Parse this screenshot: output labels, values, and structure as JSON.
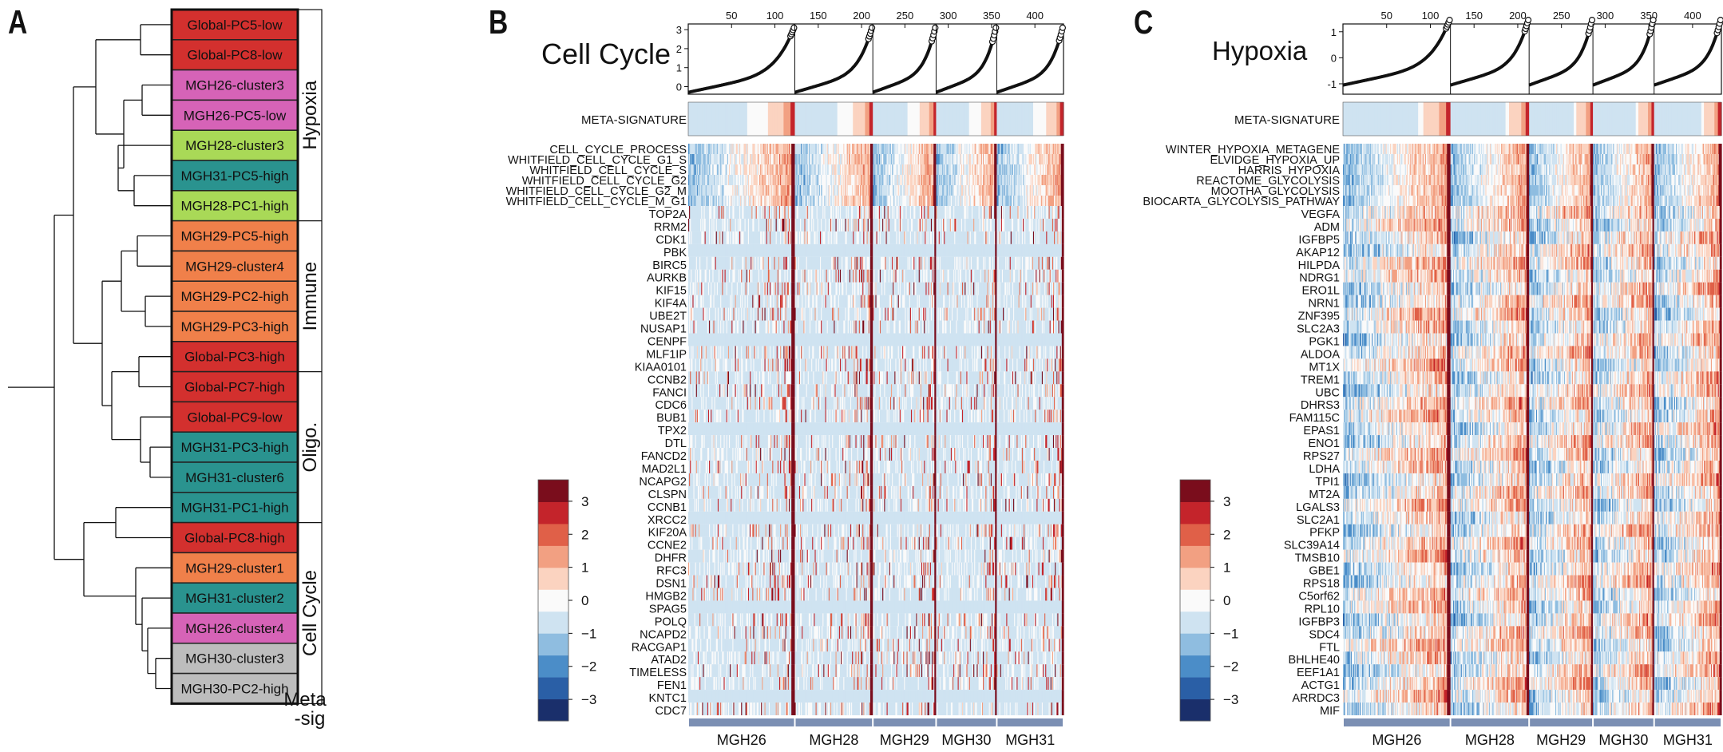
{
  "panels": {
    "a": {
      "letter": "A"
    },
    "b": {
      "letter": "B"
    },
    "c": {
      "letter": "C"
    }
  },
  "colors": {
    "scale": [
      "#1a2f6b",
      "#2a5fa6",
      "#4b8dc8",
      "#8fbde0",
      "#cfe3f1",
      "#fafafa",
      "#fbd3c0",
      "#f2a082",
      "#e06048",
      "#c4242b",
      "#7a0d1c"
    ],
    "group_pink": "#d663b7",
    "group_red": "#d3302e",
    "group_green": "#a9d957",
    "group_teal": "#2a938f",
    "group_orange": "#f0804a",
    "group_gray": "#bdbdbd",
    "sample_bar": "#7b8fb3"
  },
  "chart_data": [
    {
      "type": "dendrogram",
      "leaves": [
        {
          "label": "Global-PC5-low",
          "color": "#d3302e"
        },
        {
          "label": "Global-PC8-low",
          "color": "#d3302e"
        },
        {
          "label": "MGH26-cluster3",
          "color": "#d663b7"
        },
        {
          "label": "MGH26-PC5-low",
          "color": "#d663b7"
        },
        {
          "label": "MGH28-cluster3",
          "color": "#a9d957"
        },
        {
          "label": "MGH31-PC5-high",
          "color": "#2a938f"
        },
        {
          "label": "MGH28-PC1-high",
          "color": "#a9d957"
        },
        {
          "label": "MGH29-PC5-high",
          "color": "#f0804a"
        },
        {
          "label": "MGH29-cluster4",
          "color": "#f0804a"
        },
        {
          "label": "MGH29-PC2-high",
          "color": "#f0804a"
        },
        {
          "label": "MGH29-PC3-high",
          "color": "#f0804a"
        },
        {
          "label": "Global-PC3-high",
          "color": "#d3302e"
        },
        {
          "label": "Global-PC7-high",
          "color": "#d3302e"
        },
        {
          "label": "Global-PC9-low",
          "color": "#d3302e"
        },
        {
          "label": "MGH31-PC3-high",
          "color": "#2a938f"
        },
        {
          "label": "MGH31-cluster6",
          "color": "#2a938f"
        },
        {
          "label": "MGH31-PC1-high",
          "color": "#2a938f"
        },
        {
          "label": "Global-PC8-high",
          "color": "#d3302e"
        },
        {
          "label": "MGH29-cluster1",
          "color": "#f0804a"
        },
        {
          "label": "MGH31-cluster2",
          "color": "#2a938f"
        },
        {
          "label": "MGH26-cluster4",
          "color": "#d663b7"
        },
        {
          "label": "MGH30-cluster3",
          "color": "#bdbdbd"
        },
        {
          "label": "MGH30-PC2-high",
          "color": "#bdbdbd"
        }
      ],
      "meta_signatures": [
        {
          "label": "Hypoxia",
          "from": 0,
          "to": 6
        },
        {
          "label": "Immune",
          "from": 7,
          "to": 11
        },
        {
          "label": "Oligo.",
          "from": 12,
          "to": 16
        },
        {
          "label": "Cell Cycle",
          "from": 17,
          "to": 22
        }
      ],
      "footer": "Meta\n-sig"
    },
    {
      "type": "heatmap",
      "title": "Cell Cycle",
      "top_plot": {
        "yticks": [
          0,
          1,
          2,
          3
        ],
        "xticks": [
          50,
          100,
          150,
          200,
          250,
          300,
          350,
          400
        ]
      },
      "meta_label": "META-SIGNATURE",
      "signatures": [
        "CELL_CYCLE_PROCESS",
        "WHITFIELD_CELL_CYCLE_G1_S",
        "WHITFIELD_CELL_CYCLE_S",
        "WHITFIELD_CELL_CYCLE_G2",
        "WHITFIELD_CELL_CYCLE_G2_M",
        "WHITFIELD_CELL_CYCLE_M_G1"
      ],
      "genes": [
        "TOP2A",
        "RRM2",
        "CDK1",
        "PBK",
        "BIRC5",
        "AURKB",
        "KIF15",
        "KIF4A",
        "UBE2T",
        "NUSAP1",
        "CENPF",
        "MLF1IP",
        "KIAA0101",
        "CCNB2",
        "FANCI",
        "CDC6",
        "BUB1",
        "TPX2",
        "DTL",
        "FANCD2",
        "MAD2L1",
        "NCAPG2",
        "CLSPN",
        "CCNB1",
        "XRCC2",
        "KIF20A",
        "CCNE2",
        "DHFR",
        "RFC3",
        "DSN1",
        "HMGB2",
        "SPAG5",
        "POLQ",
        "NCAPD2",
        "RACGAP1",
        "ATAD2",
        "TIMELESS",
        "FEN1",
        "KNTC1",
        "CDC7"
      ],
      "samples": [
        "MGH26",
        "MGH28",
        "MGH29",
        "MGH30",
        "MGH31"
      ],
      "sample_bounds": [
        0,
        123,
        213,
        286,
        356,
        433
      ],
      "colorbar_ticks": [
        3,
        2,
        1,
        0,
        -1,
        -2,
        -3
      ]
    },
    {
      "type": "heatmap",
      "title": "Hypoxia",
      "top_plot": {
        "yticks": [
          -1,
          0,
          1
        ],
        "xticks": [
          50,
          100,
          150,
          200,
          250,
          300,
          350,
          400
        ]
      },
      "meta_label": "META-SIGNATURE",
      "signatures": [
        "WINTER_HYPOXIA_METAGENE",
        "ELVIDGE_HYPOXIA_UP",
        "HARRIS_HYPOXIA",
        "REACTOME_GLYCOLYSIS",
        "MOOTHA_GLYCOLYSIS",
        "BIOCARTA_GLYCOLYSIS_PATHWAY"
      ],
      "genes": [
        "VEGFA",
        "ADM",
        "IGFBP5",
        "AKAP12",
        "HILPDA",
        "NDRG1",
        "ERO1L",
        "NRN1",
        "ZNF395",
        "SLC2A3",
        "PGK1",
        "ALDOA",
        "MT1X",
        "TREM1",
        "UBC",
        "DHRS3",
        "FAM115C",
        "EPAS1",
        "ENO1",
        "RPS27",
        "LDHA",
        "TPI1",
        "MT2A",
        "LGALS3",
        "SLC2A1",
        "PFKP",
        "SLC39A14",
        "TMSB10",
        "GBE1",
        "RPS18",
        "C5orf62",
        "RPL10",
        "IGFBP3",
        "SDC4",
        "FTL",
        "BHLHE40",
        "EEF1A1",
        "ACTG1",
        "ARRDC3",
        "MIF"
      ],
      "samples": [
        "MGH26",
        "MGH28",
        "MGH29",
        "MGH30",
        "MGH31"
      ],
      "sample_bounds": [
        0,
        123,
        213,
        286,
        356,
        433
      ],
      "colorbar_ticks": [
        3,
        2,
        1,
        0,
        -1,
        -2,
        -3
      ]
    }
  ]
}
